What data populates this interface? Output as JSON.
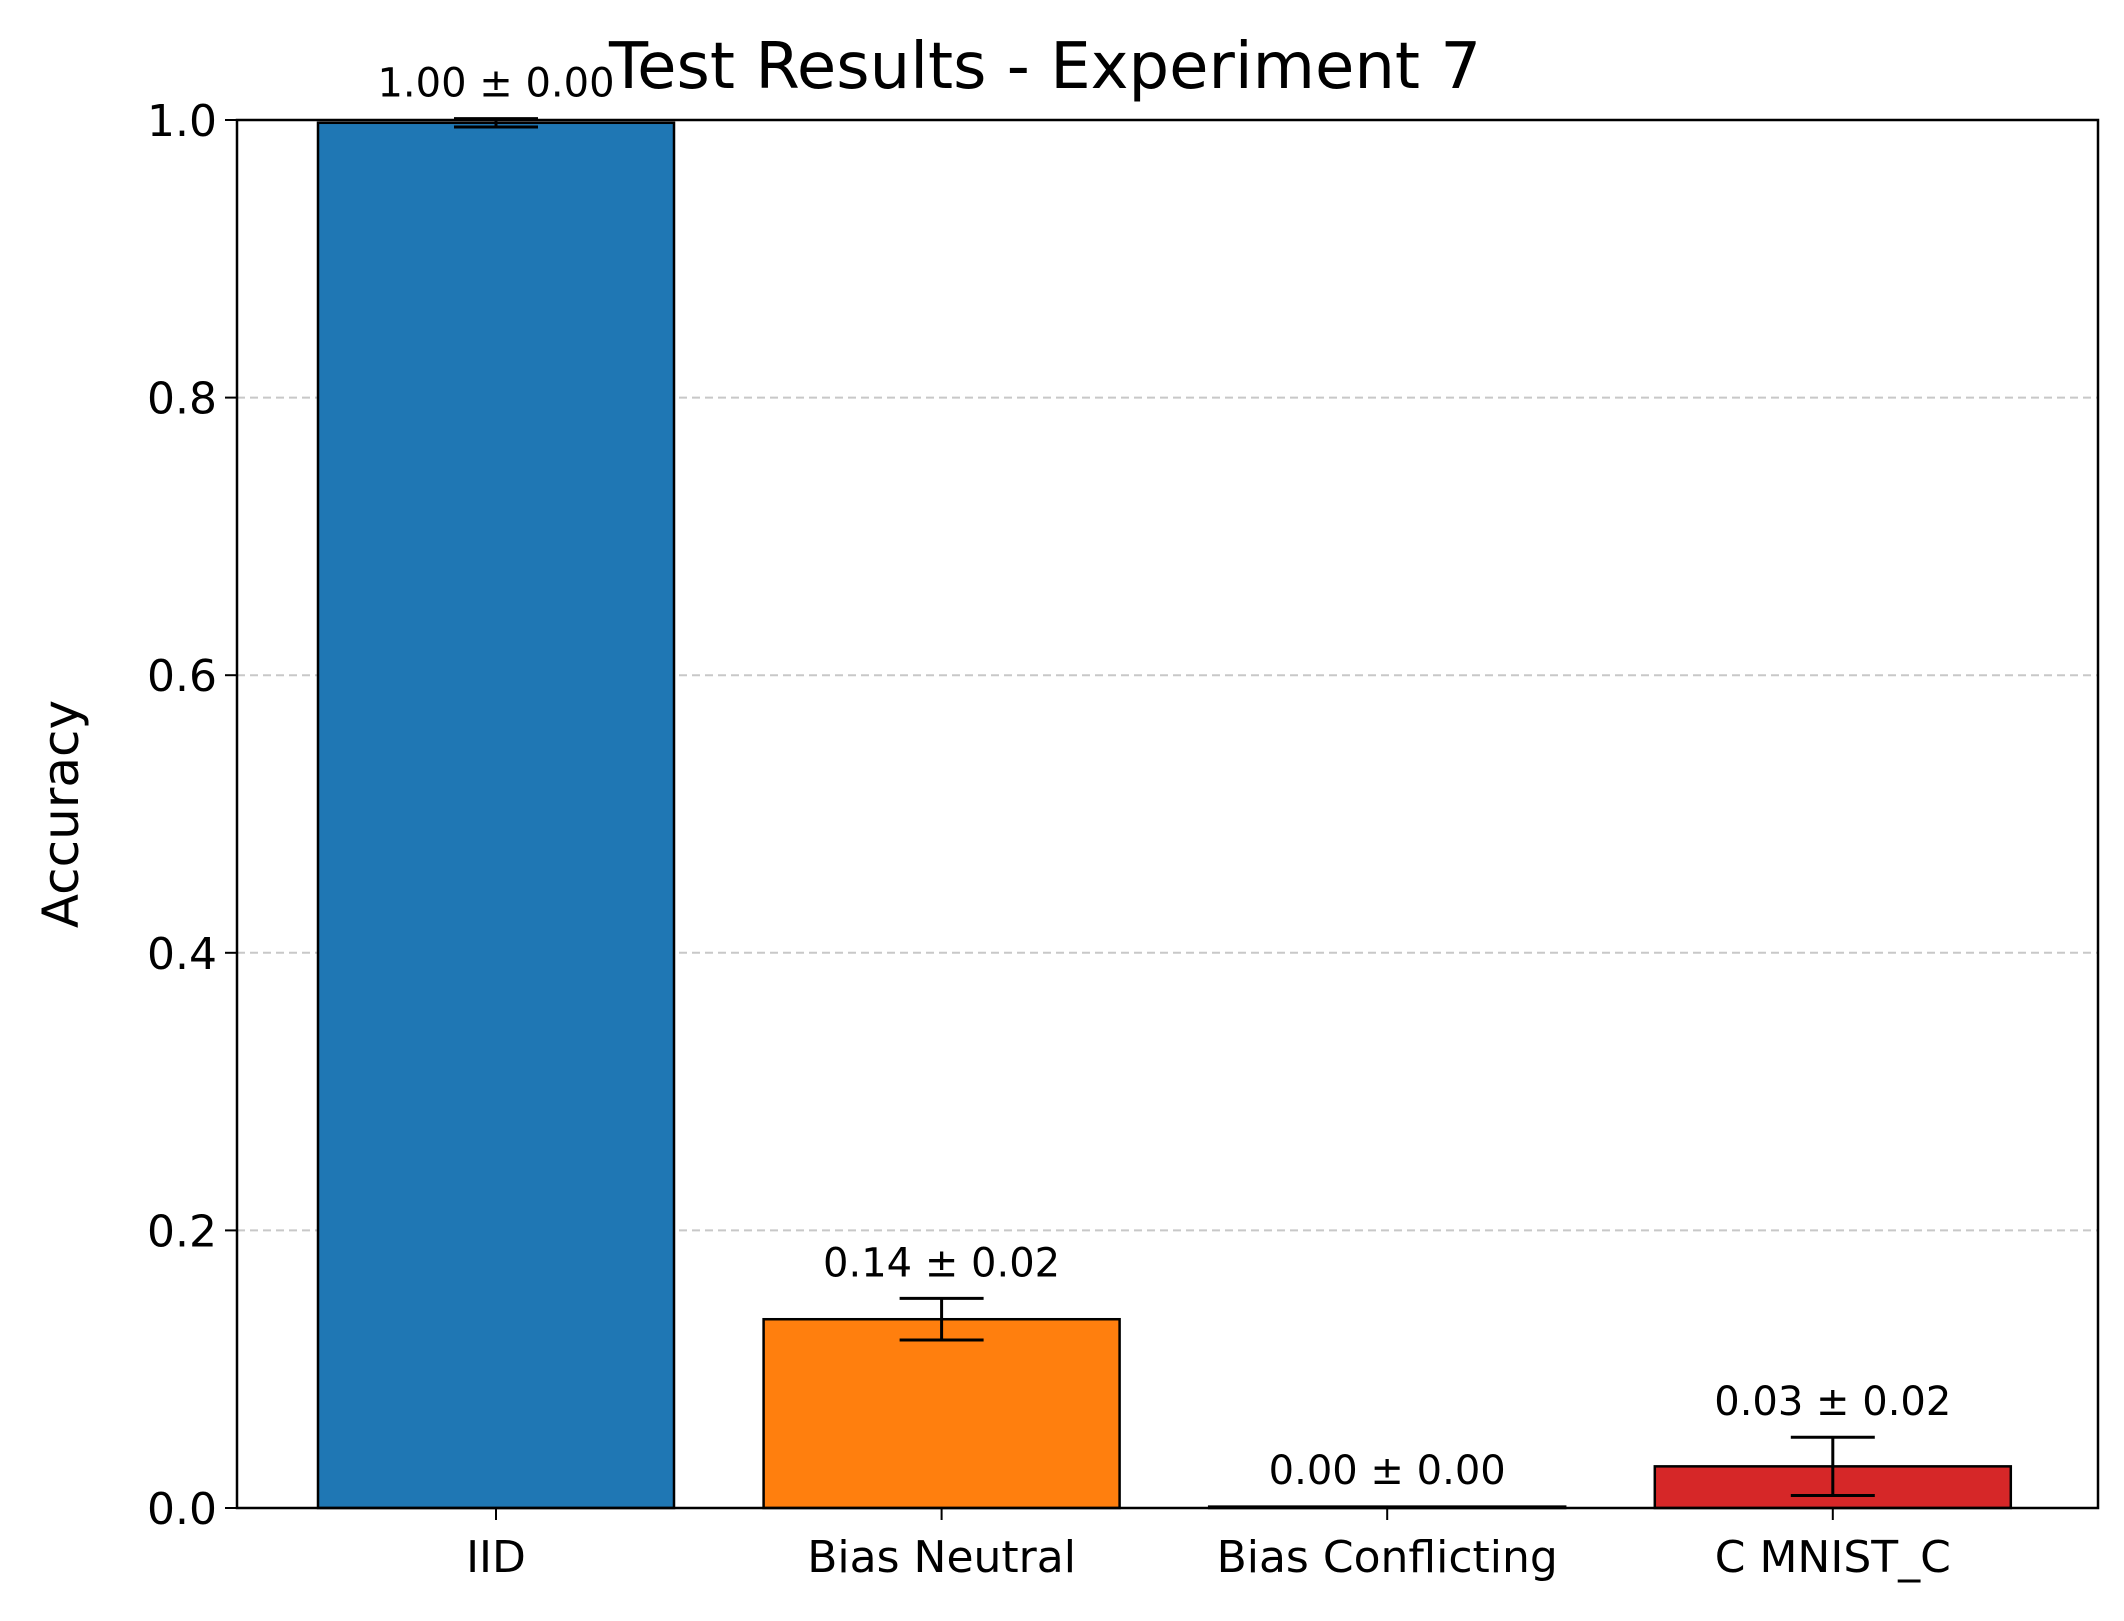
{
  "chart_data": {
    "type": "bar",
    "title": "Test Results - Experiment 7",
    "xlabel": "",
    "ylabel": "Accuracy",
    "ylim": [
      0,
      1.0
    ],
    "yticks": [
      "0.0",
      "0.2",
      "0.4",
      "0.6",
      "0.8",
      "1.0"
    ],
    "grid": "y-dashed",
    "categories": [
      "IID",
      "Bias Neutral",
      "Bias Conflicting",
      "C MNIST_C"
    ],
    "values": [
      0.998,
      0.136,
      0.001,
      0.03
    ],
    "errors": [
      0.003,
      0.015,
      0.0005,
      0.021
    ],
    "data_labels": [
      "1.00 ± 0.00",
      "0.14 ± 0.02",
      "0.00 ± 0.00",
      "0.03 ± 0.02"
    ],
    "colors": [
      "#1f77b4",
      "#ff7f0e",
      "#2ca02c",
      "#d62728"
    ]
  }
}
